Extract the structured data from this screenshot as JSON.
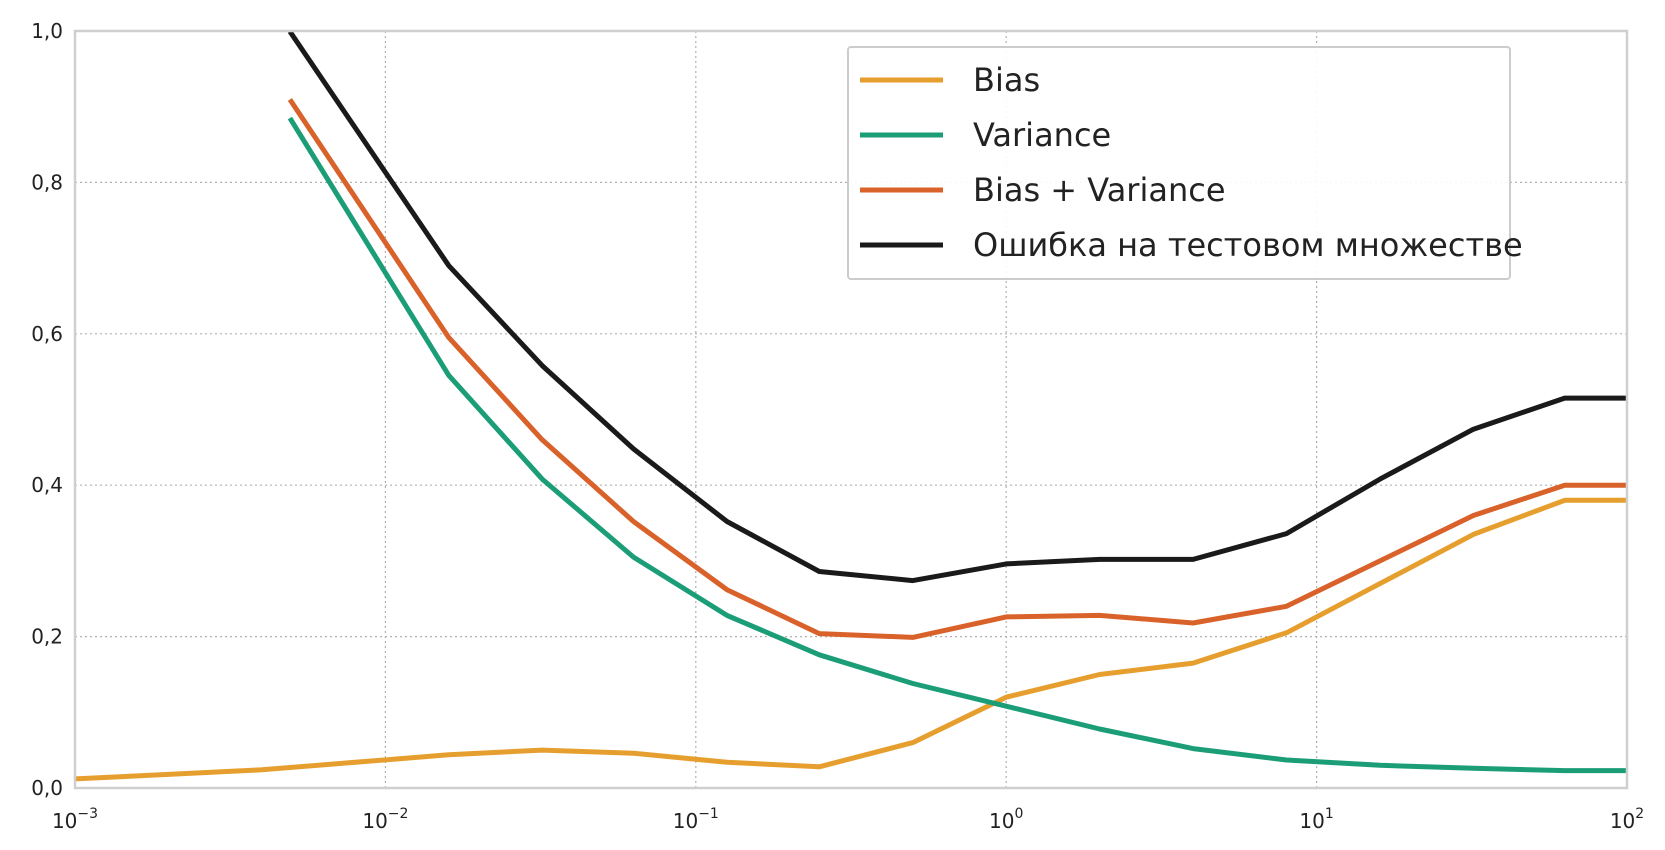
{
  "chart_data": {
    "type": "line",
    "title": "",
    "xlabel": "",
    "ylabel": "",
    "xscale": "log",
    "xlim": [
      0.001,
      100
    ],
    "ylim": [
      0,
      1
    ],
    "grid": true,
    "legend_position": "top-right",
    "x_ticks": [
      {
        "base": "10",
        "exp": "−3"
      },
      {
        "base": "10",
        "exp": "−2"
      },
      {
        "base": "10",
        "exp": "−1"
      },
      {
        "base": "10",
        "exp": "0"
      },
      {
        "base": "10",
        "exp": "1"
      },
      {
        "base": "10",
        "exp": "2"
      }
    ],
    "y_ticks": [
      "0,0",
      "0,2",
      "0,4",
      "0,6",
      "0,8",
      "1,0"
    ],
    "x": [
      0.001,
      0.002,
      0.004,
      0.008,
      0.016,
      0.032,
      0.063,
      0.126,
      0.25,
      0.5,
      1.0,
      2.0,
      4.0,
      8.0,
      16.0,
      32.0,
      63.0,
      100.0
    ],
    "series": [
      {
        "name": "Bias",
        "color": "#E69F2E",
        "values": [
          0.012,
          0.018,
          0.024,
          0.034,
          0.044,
          0.05,
          0.046,
          0.034,
          0.028,
          0.06,
          0.12,
          0.15,
          0.165,
          0.205,
          0.27,
          0.335,
          0.38,
          0.38
        ]
      },
      {
        "name": "Variance",
        "color": "#1B9E77",
        "values": [
          null,
          null,
          null,
          0.745,
          0.545,
          0.408,
          0.305,
          0.228,
          0.176,
          0.138,
          0.108,
          0.078,
          0.052,
          0.037,
          0.03,
          0.026,
          0.023,
          0.023
        ]
      },
      {
        "name": "Bias + Variance",
        "color": "#D9622B",
        "values": [
          null,
          null,
          null,
          0.78,
          0.595,
          0.46,
          0.352,
          0.262,
          0.204,
          0.199,
          0.226,
          0.228,
          0.218,
          0.24,
          0.3,
          0.36,
          0.4,
          0.4
        ]
      },
      {
        "name": "Ошибка на тестовом множестве",
        "color": "#1a1a1a",
        "values": [
          null,
          null,
          null,
          0.872,
          0.69,
          0.558,
          0.448,
          0.352,
          0.286,
          0.274,
          0.296,
          0.302,
          0.302,
          0.336,
          0.408,
          0.474,
          0.515,
          0.515
        ]
      }
    ]
  }
}
